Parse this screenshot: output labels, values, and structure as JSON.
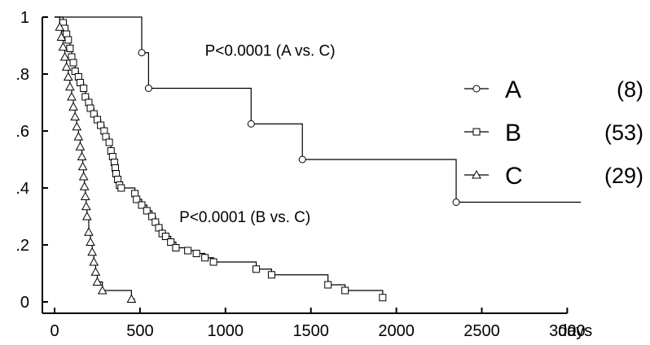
{
  "chart_data": {
    "type": "line",
    "subtype": "kaplan-meier-step",
    "title": "",
    "xlabel": "days",
    "ylabel": "",
    "xlim": [
      0,
      3100
    ],
    "ylim": [
      0,
      1
    ],
    "x_ticks": [
      0,
      500,
      1000,
      1500,
      2000,
      2500,
      3000
    ],
    "x_tick_labels": [
      "0",
      "500",
      "1000",
      "1500",
      "2000",
      "2500",
      "3000"
    ],
    "y_ticks": [
      0,
      0.2,
      0.4,
      0.6,
      0.8,
      1
    ],
    "y_tick_labels": [
      "0",
      ".2",
      ".4",
      ".6",
      ".8",
      "1"
    ],
    "grid": false,
    "legend_placement": "right",
    "annotations": [
      {
        "text": "P<0.0001 (A vs. C)",
        "x": 880,
        "y": 0.865
      },
      {
        "text": "P<0.0001 (B vs. C)",
        "x": 730,
        "y": 0.28
      }
    ],
    "series": [
      {
        "name": "A",
        "count_label": "(8)",
        "marker": "circle",
        "end_x": 3080,
        "steps": [
          [
            0,
            1.0
          ],
          [
            510,
            0.875
          ],
          [
            550,
            0.75
          ],
          [
            1150,
            0.625
          ],
          [
            1450,
            0.5
          ],
          [
            2350,
            0.35
          ]
        ]
      },
      {
        "name": "B",
        "count_label": "(53)",
        "marker": "square",
        "end_x": 1930,
        "steps": [
          [
            0,
            1.0
          ],
          [
            50,
            0.98
          ],
          [
            60,
            0.96
          ],
          [
            70,
            0.94
          ],
          [
            80,
            0.92
          ],
          [
            90,
            0.89
          ],
          [
            100,
            0.86
          ],
          [
            110,
            0.84
          ],
          [
            120,
            0.81
          ],
          [
            140,
            0.79
          ],
          [
            150,
            0.77
          ],
          [
            170,
            0.75
          ],
          [
            180,
            0.72
          ],
          [
            200,
            0.7
          ],
          [
            210,
            0.68
          ],
          [
            230,
            0.66
          ],
          [
            250,
            0.64
          ],
          [
            270,
            0.62
          ],
          [
            290,
            0.6
          ],
          [
            300,
            0.58
          ],
          [
            320,
            0.56
          ],
          [
            330,
            0.53
          ],
          [
            340,
            0.51
          ],
          [
            350,
            0.49
          ],
          [
            355,
            0.47
          ],
          [
            360,
            0.45
          ],
          [
            370,
            0.43
          ],
          [
            380,
            0.41
          ],
          [
            390,
            0.4
          ],
          [
            470,
            0.38
          ],
          [
            480,
            0.36
          ],
          [
            510,
            0.34
          ],
          [
            540,
            0.32
          ],
          [
            570,
            0.3
          ],
          [
            590,
            0.28
          ],
          [
            610,
            0.26
          ],
          [
            630,
            0.24
          ],
          [
            650,
            0.23
          ],
          [
            680,
            0.21
          ],
          [
            710,
            0.19
          ],
          [
            780,
            0.18
          ],
          [
            830,
            0.17
          ],
          [
            880,
            0.155
          ],
          [
            930,
            0.14
          ],
          [
            1180,
            0.115
          ],
          [
            1270,
            0.095
          ],
          [
            1600,
            0.06
          ],
          [
            1700,
            0.04
          ],
          [
            1920,
            0.015
          ]
        ]
      },
      {
        "name": "C",
        "count_label": "(29)",
        "marker": "triangle",
        "end_x": 470,
        "steps": [
          [
            0,
            1.0
          ],
          [
            30,
            0.965
          ],
          [
            40,
            0.93
          ],
          [
            50,
            0.895
          ],
          [
            60,
            0.86
          ],
          [
            70,
            0.825
          ],
          [
            80,
            0.79
          ],
          [
            90,
            0.755
          ],
          [
            100,
            0.72
          ],
          [
            110,
            0.685
          ],
          [
            120,
            0.65
          ],
          [
            130,
            0.615
          ],
          [
            140,
            0.58
          ],
          [
            150,
            0.545
          ],
          [
            160,
            0.51
          ],
          [
            165,
            0.475
          ],
          [
            170,
            0.44
          ],
          [
            175,
            0.405
          ],
          [
            180,
            0.37
          ],
          [
            185,
            0.335
          ],
          [
            190,
            0.3
          ],
          [
            200,
            0.245
          ],
          [
            210,
            0.21
          ],
          [
            220,
            0.175
          ],
          [
            230,
            0.14
          ],
          [
            240,
            0.105
          ],
          [
            250,
            0.07
          ],
          [
            280,
            0.04
          ],
          [
            450,
            0.01
          ]
        ]
      }
    ]
  }
}
